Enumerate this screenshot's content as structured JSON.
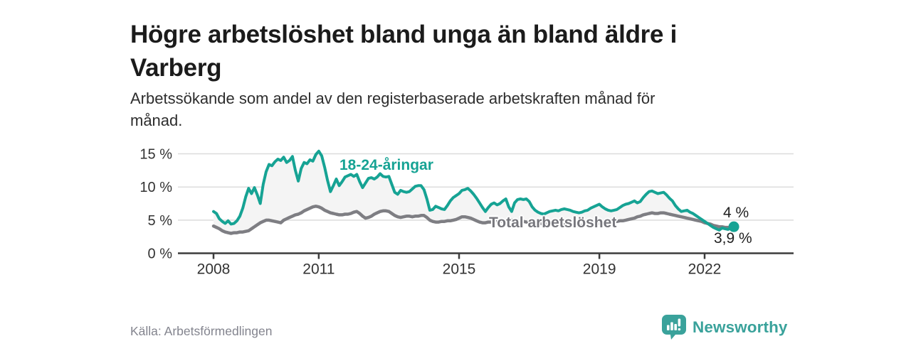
{
  "header": {
    "title_lines": [
      "Högre arbetslöshet bland unga än bland äldre i",
      "Varberg"
    ],
    "subtitle_lines": [
      "Arbetssökande som andel av den registerbaserade arbetskraften månad för",
      "månad."
    ]
  },
  "footer": {
    "source": "Källa: Arbetsförmedlingen",
    "brand": "Newsworthy"
  },
  "colors": {
    "young_line": "#16A394",
    "total_line": "#7E7E83",
    "total_label": "#77777D",
    "between_fill": "#F4F4F4",
    "axis": "#3C3C3C",
    "grid": "#DCDCDC",
    "tick_text": "#333333",
    "end_label_text": "#1F1F1F",
    "brand_teal": "#3AA29B"
  },
  "chart_data": {
    "type": "line",
    "title": "Högre arbetslöshet bland unga än bland äldre i Varberg",
    "subtitle": "Arbetssökande som andel av den registerbaserade arbetskraften månad för månad.",
    "xlabel": "",
    "ylabel": "%",
    "x_start_year": 2008,
    "x_step_years": 0.08333,
    "x_tick_years": [
      2008,
      2011,
      2015,
      2019,
      2022
    ],
    "x_tick_labels": [
      "2008",
      "2011",
      "2015",
      "2019",
      "2022"
    ],
    "y_ticks": [
      0,
      5,
      10,
      15
    ],
    "y_tick_labels": [
      "0 %",
      "5 %",
      "10 %",
      "15 %"
    ],
    "ylim": [
      0,
      16
    ],
    "grid": "horizontal",
    "legend_position": "inline-labels",
    "series": [
      {
        "name": "18-24-åringar",
        "end_label": "4 %",
        "end_value": 4.0,
        "values": [
          6.3,
          6.0,
          5.2,
          4.8,
          4.5,
          4.9,
          4.4,
          4.5,
          4.9,
          5.6,
          6.8,
          8.5,
          9.8,
          9.0,
          9.9,
          8.8,
          7.5,
          10.4,
          12.3,
          13.4,
          13.2,
          13.8,
          14.2,
          14.0,
          14.5,
          13.7,
          14.0,
          14.6,
          12.5,
          10.9,
          12.8,
          13.7,
          13.5,
          14.1,
          13.9,
          14.9,
          15.4,
          14.7,
          13.0,
          11.0,
          9.3,
          10.2,
          11.2,
          10.2,
          10.8,
          11.5,
          11.7,
          11.9,
          11.6,
          11.9,
          10.8,
          9.9,
          10.6,
          11.3,
          11.4,
          11.2,
          11.5,
          12.0,
          11.6,
          11.5,
          11.6,
          10.4,
          9.2,
          8.9,
          9.5,
          9.3,
          9.2,
          9.3,
          9.7,
          10.1,
          10.2,
          10.2,
          9.6,
          8.2,
          6.5,
          6.6,
          7.1,
          6.9,
          6.7,
          6.6,
          7.2,
          7.9,
          8.4,
          8.7,
          9.0,
          9.5,
          9.6,
          9.8,
          9.4,
          8.9,
          8.3,
          7.6,
          6.9,
          6.3,
          6.9,
          7.4,
          7.6,
          7.3,
          7.5,
          7.9,
          8.2,
          7.0,
          6.3,
          7.6,
          8.1,
          8.2,
          8.1,
          8.2,
          7.8,
          7.0,
          6.5,
          6.2,
          6.0,
          5.9,
          6.1,
          6.3,
          6.4,
          6.5,
          6.4,
          6.6,
          6.7,
          6.6,
          6.5,
          6.3,
          6.2,
          6.1,
          6.2,
          6.4,
          6.5,
          6.8,
          7.0,
          7.2,
          7.4,
          7.0,
          6.7,
          6.5,
          6.4,
          6.5,
          6.6,
          6.9,
          7.2,
          7.4,
          7.5,
          7.7,
          7.9,
          7.6,
          7.8,
          8.4,
          8.9,
          9.3,
          9.4,
          9.2,
          9.0,
          9.1,
          9.2,
          8.8,
          8.3,
          7.9,
          7.2,
          6.7,
          6.3,
          6.4,
          6.5,
          6.2,
          6.0,
          5.7,
          5.4,
          5.1,
          4.8,
          4.5,
          4.2,
          3.9,
          3.7,
          3.5,
          3.8,
          3.7,
          3.6,
          3.8,
          4.0
        ]
      },
      {
        "name": "Total arbetslöshet",
        "end_label": "3,9 %",
        "end_value": 3.9,
        "values": [
          4.1,
          3.9,
          3.7,
          3.4,
          3.2,
          3.1,
          3.0,
          3.1,
          3.1,
          3.2,
          3.2,
          3.3,
          3.4,
          3.7,
          4.0,
          4.3,
          4.6,
          4.8,
          5.0,
          5.0,
          4.9,
          4.8,
          4.7,
          4.6,
          5.0,
          5.2,
          5.4,
          5.6,
          5.8,
          5.9,
          6.1,
          6.4,
          6.6,
          6.8,
          7.0,
          7.1,
          7.0,
          6.8,
          6.5,
          6.3,
          6.1,
          6.0,
          5.9,
          5.8,
          5.8,
          5.9,
          5.9,
          6.0,
          6.2,
          6.3,
          6.0,
          5.6,
          5.3,
          5.4,
          5.6,
          5.9,
          6.1,
          6.3,
          6.4,
          6.4,
          6.3,
          6.0,
          5.7,
          5.5,
          5.4,
          5.5,
          5.6,
          5.6,
          5.5,
          5.6,
          5.6,
          5.7,
          5.7,
          5.4,
          5.0,
          4.8,
          4.7,
          4.7,
          4.8,
          4.8,
          4.9,
          4.9,
          5.0,
          5.1,
          5.3,
          5.5,
          5.5,
          5.4,
          5.3,
          5.1,
          4.9,
          4.7,
          4.6,
          4.6,
          4.7,
          4.7,
          4.7,
          4.8,
          4.8,
          4.9,
          4.9,
          5.0,
          5.0,
          4.9,
          4.9,
          4.8,
          4.8,
          4.7,
          4.7,
          4.6,
          4.6,
          4.5,
          4.5,
          4.4,
          4.4,
          4.4,
          4.3,
          4.3,
          4.3,
          4.3,
          4.3,
          4.3,
          4.2,
          4.2,
          4.2,
          4.2,
          4.2,
          4.3,
          4.3,
          4.4,
          4.4,
          4.5,
          4.5,
          4.6,
          4.6,
          4.7,
          4.7,
          4.8,
          4.8,
          4.9,
          4.9,
          5.0,
          5.1,
          5.2,
          5.3,
          5.5,
          5.6,
          5.8,
          5.9,
          6.0,
          6.1,
          6.0,
          6.0,
          6.1,
          6.1,
          6.0,
          5.9,
          5.8,
          5.7,
          5.6,
          5.5,
          5.4,
          5.3,
          5.2,
          5.1,
          5.0,
          4.9,
          4.8,
          4.6,
          4.5,
          4.4,
          4.2,
          4.1,
          4.0,
          4.0,
          3.9,
          3.9,
          3.9,
          3.9
        ]
      }
    ]
  }
}
